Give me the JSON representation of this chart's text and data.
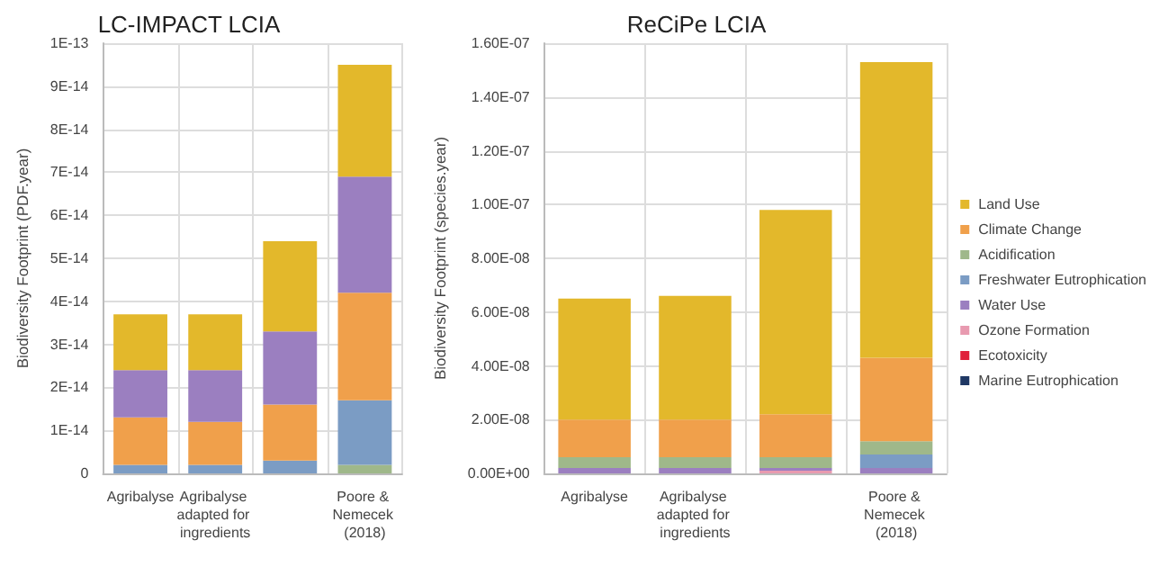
{
  "chart_data": [
    {
      "type": "bar",
      "title": "LC-IMPACT LCIA",
      "ylabel": "Biodiversity Footprint (PDF.year)",
      "stacked": true,
      "grid": true,
      "legend": false,
      "categories": [
        "Agribalyse",
        "Agribalyse adapted for ingredients",
        null,
        "Poore & Nemecek (2018)"
      ],
      "ylim": [
        0,
        1e-13
      ],
      "yticks": [
        0,
        {
          "value": 1e-14,
          "label": "1E-14"
        },
        {
          "value": 2e-14,
          "label": "2E-14"
        },
        {
          "value": 3e-14,
          "label": "3E-14"
        },
        {
          "value": 4e-14,
          "label": "4E-14"
        },
        {
          "value": 5e-14,
          "label": "5E-14"
        },
        {
          "value": 6e-14,
          "label": "6E-14"
        },
        {
          "value": 7e-14,
          "label": "7E-14"
        },
        {
          "value": 8e-14,
          "label": "8E-14"
        },
        {
          "value": 9e-14,
          "label": "9E-14"
        },
        {
          "value": 1e-13,
          "label": "1E-13"
        }
      ],
      "series": [
        {
          "color": "#9fb88a",
          "values": [
            null,
            null,
            null,
            2e-15
          ]
        },
        {
          "color": "#7b9cc4",
          "values": [
            2e-15,
            2e-15,
            3e-15,
            1.5e-14
          ]
        },
        {
          "color": "#f0a04b",
          "values": [
            1.1e-14,
            1e-14,
            1.3e-14,
            2.5e-14
          ]
        },
        {
          "color": "#9b7fc0",
          "values": [
            1.1e-14,
            1.2e-14,
            1.7e-14,
            2.7e-14
          ]
        },
        {
          "color": "#e3b82b",
          "values": [
            1.3e-14,
            1.3e-14,
            2.1e-14,
            2.6e-14
          ]
        }
      ]
    },
    {
      "type": "bar",
      "title": "ReCiPe LCIA",
      "ylabel": "Biodiversity Footprint (species.year)",
      "stacked": true,
      "grid": true,
      "legend": "right",
      "categories": [
        "Agribalyse",
        "Agribalyse adapted for ingredients",
        null,
        "Poore & Nemecek (2018)"
      ],
      "ylim": [
        0,
        1.6e-07
      ],
      "yticks": [
        {
          "value": 0,
          "label": "0.00E+00"
        },
        {
          "value": 2e-08,
          "label": "2.00E-08"
        },
        {
          "value": 4e-08,
          "label": "4.00E-08"
        },
        {
          "value": 6e-08,
          "label": "6.00E-08"
        },
        {
          "value": 8e-08,
          "label": "8.00E-08"
        },
        {
          "value": 1e-07,
          "label": "1.00E-07"
        },
        {
          "value": 1.2e-07,
          "label": "1.20E-07"
        },
        {
          "value": 1.4e-07,
          "label": "1.40E-07"
        },
        {
          "value": 1.6e-07,
          "label": "1.60E-07"
        }
      ],
      "series": [
        {
          "name": "Marine Eutrophication",
          "color": "#1f3864",
          "values": [
            null,
            null,
            null,
            null
          ]
        },
        {
          "name": "Ecotoxicity",
          "color": "#e0203a",
          "values": [
            null,
            null,
            null,
            null
          ]
        },
        {
          "name": "Ozone Formation",
          "color": "#e89ab0",
          "values": [
            null,
            null,
            1e-09,
            null
          ]
        },
        {
          "name": "Water Use",
          "color": "#9b7fc0",
          "values": [
            2e-09,
            2e-09,
            1e-09,
            2e-09
          ]
        },
        {
          "name": "Freshwater Eutrophication",
          "color": "#7b9cc4",
          "values": [
            null,
            null,
            null,
            5e-09
          ]
        },
        {
          "name": "Acidification",
          "color": "#9fb88a",
          "values": [
            4e-09,
            4e-09,
            4e-09,
            5e-09
          ]
        },
        {
          "name": "Climate Change",
          "color": "#f0a04b",
          "values": [
            1.4e-08,
            1.4e-08,
            1.6e-08,
            3.1e-08
          ]
        },
        {
          "name": "Land Use",
          "color": "#e3b82b",
          "values": [
            4.5e-08,
            4.6e-08,
            7.6e-08,
            1.1e-07
          ]
        }
      ]
    }
  ]
}
